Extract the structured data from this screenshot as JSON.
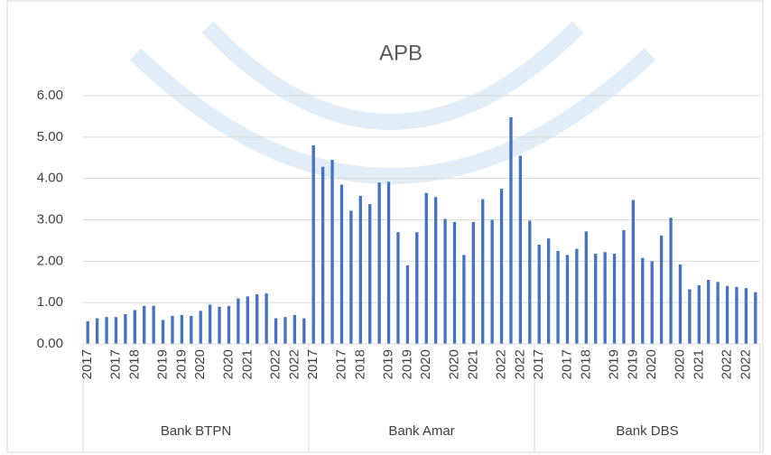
{
  "chart_data": {
    "type": "bar",
    "title": "APB",
    "color": "#4472c4",
    "ylim": [
      0,
      6
    ],
    "yticks": [
      {
        "value": 0,
        "label": "0.00"
      },
      {
        "value": 1,
        "label": "1.00"
      },
      {
        "value": 2,
        "label": "2.00"
      },
      {
        "value": 3,
        "label": "3.00"
      },
      {
        "value": 4,
        "label": "4.00"
      },
      {
        "value": 5,
        "label": "5.00"
      },
      {
        "value": 6,
        "label": "6.00"
      }
    ],
    "grid": true,
    "groups": [
      {
        "name": "Bank BTPN",
        "categories": [
          "2017",
          null,
          null,
          "2017",
          null,
          "2018",
          null,
          null,
          "2019",
          null,
          "2019",
          null,
          "2020",
          null,
          null,
          "2020",
          null,
          "2021",
          null,
          null,
          "2022",
          null,
          "2022",
          null
        ],
        "values": [
          0.55,
          0.62,
          0.65,
          0.65,
          0.72,
          0.82,
          0.92,
          0.92,
          0.58,
          0.68,
          0.7,
          0.68,
          0.8,
          0.95,
          0.9,
          0.92,
          1.1,
          1.15,
          1.2,
          1.22,
          0.62,
          0.65,
          0.7,
          0.62
        ]
      },
      {
        "name": "Bank Amar",
        "categories": [
          "2017",
          null,
          null,
          "2017",
          null,
          "2018",
          null,
          null,
          "2019",
          null,
          "2019",
          null,
          "2020",
          null,
          null,
          "2020",
          null,
          "2021",
          null,
          null,
          "2022",
          null,
          "2022",
          null
        ],
        "values": [
          4.8,
          4.28,
          4.45,
          3.85,
          3.22,
          3.58,
          3.38,
          3.9,
          3.92,
          2.7,
          1.9,
          2.7,
          3.65,
          3.55,
          3.02,
          2.95,
          2.15,
          2.95,
          3.5,
          3.0,
          3.75,
          5.48,
          4.55,
          2.98
        ]
      },
      {
        "name": "Bank DBS",
        "categories": [
          "2017",
          null,
          null,
          "2017",
          null,
          "2018",
          null,
          null,
          "2019",
          null,
          "2019",
          null,
          "2020",
          null,
          null,
          "2020",
          null,
          "2021",
          null,
          null,
          "2022",
          null,
          "2022",
          null
        ],
        "values": [
          2.4,
          2.55,
          2.25,
          2.15,
          2.3,
          2.72,
          2.18,
          2.22,
          2.18,
          2.75,
          3.48,
          2.08,
          2.0,
          2.62,
          3.05,
          1.92,
          1.32,
          1.42,
          1.55,
          1.5,
          1.4,
          1.38,
          1.35,
          1.25
        ]
      }
    ]
  }
}
